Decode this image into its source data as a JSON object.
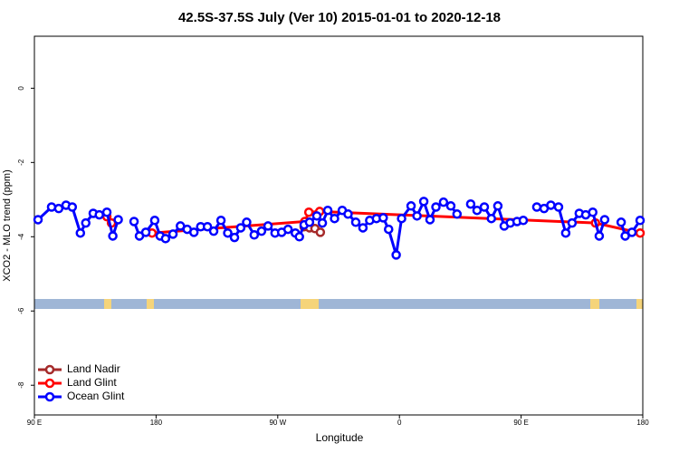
{
  "chart_data": {
    "type": "line",
    "title": "42.5S-37.5S July (Ver 10)   2015-01-01 to 2020-12-18",
    "x_label": "Longitude",
    "y_label": "XCO2 - MLO trend (ppm)",
    "xlim": [
      90,
      540
    ],
    "ylim": [
      -8.8,
      1.4
    ],
    "xticks": [
      {
        "value": 90,
        "label": "90 E"
      },
      180,
      {
        "value": 270,
        "label": "90 W"
      },
      {
        "value": 360,
        "label": "0"
      },
      {
        "value": 450,
        "label": "90 E"
      },
      {
        "value": 540,
        "label": "180"
      }
    ],
    "yticks": [
      0,
      -2,
      -4,
      -6,
      -8
    ],
    "legend": "bottom-left",
    "series": [
      {
        "name": "Land Nadir",
        "color": "#a52a2a",
        "x": [
          289.5,
          293.5,
          297.5,
          301.5
        ],
        "values": [
          -3.73,
          -3.76,
          -3.78,
          -3.88
        ]
      },
      {
        "name": "Land Glint",
        "color": "#ff0000",
        "x": [
          143.6,
          147,
          160,
          177,
          290,
          293,
          301,
          505,
          538
        ],
        "values": [
          -3.46,
          -3.63,
          null,
          -3.9,
          -3.59,
          -3.34,
          -3.32,
          -3.63,
          -3.9
        ]
      },
      {
        "name": "Ocean Glint",
        "color": "#0000ff",
        "x": [
          92.7,
          102.7,
          108,
          113.4,
          118,
          124,
          128,
          133.5,
          138,
          143.6,
          148,
          152,
          158,
          163.7,
          167.7,
          172.4,
          179,
          183,
          187,
          192.5,
          198,
          203,
          208,
          213,
          218,
          222.6,
          228,
          233,
          238,
          242.6,
          247,
          252.6,
          258,
          262.8,
          268,
          272.9,
          277.6,
          283,
          286,
          289.5,
          293.5,
          298.9,
          303,
          307,
          312,
          317.7,
          322,
          327.7,
          333,
          338,
          343,
          348,
          352,
          357.6,
          361.6,
          368.6,
          373,
          378,
          382.6,
          387,
          392.6,
          398,
          402.6,
          408,
          412.7,
          417.4,
          422.8,
          428,
          432.8,
          437.5,
          442,
          447,
          451.6,
          456,
          461.6,
          467,
          472,
          477.7,
          483,
          487.7,
          493,
          497.8,
          503,
          507.8,
          511.8,
          518,
          524,
          527,
          532,
          538
        ],
        "values": [
          -3.54,
          -3.2,
          -3.24,
          -3.15,
          -3.2,
          -3.9,
          -3.63,
          -3.37,
          -3.41,
          -3.34,
          -3.98,
          -3.54,
          null,
          -3.59,
          -3.98,
          -3.88,
          -3.56,
          -3.98,
          -4.05,
          -3.93,
          -3.71,
          -3.8,
          -3.88,
          -3.73,
          -3.73,
          -3.85,
          -3.56,
          -3.9,
          -4.02,
          -3.76,
          -3.61,
          -3.95,
          -3.85,
          -3.71,
          -3.9,
          -3.88,
          -3.8,
          -3.9,
          -4.0,
          -3.68,
          -3.61,
          -3.44,
          -3.63,
          -3.29,
          -3.51,
          -3.29,
          -3.39,
          -3.61,
          -3.76,
          -3.56,
          -3.51,
          -3.49,
          -3.8,
          -4.49,
          -3.51,
          -3.17,
          -3.44,
          -3.05,
          -3.54,
          -3.2,
          -3.07,
          -3.17,
          -3.39,
          null,
          -3.12,
          -3.29,
          -3.2,
          -3.51,
          -3.17,
          -3.71,
          -3.63,
          -3.59,
          -3.56,
          null,
          -3.2,
          -3.24,
          -3.15,
          -3.2,
          -3.9,
          -3.63,
          -3.37,
          -3.41,
          -3.34,
          -3.98,
          -3.54,
          null,
          -3.61,
          -3.98,
          -3.88,
          -3.56
        ]
      }
    ]
  }
}
